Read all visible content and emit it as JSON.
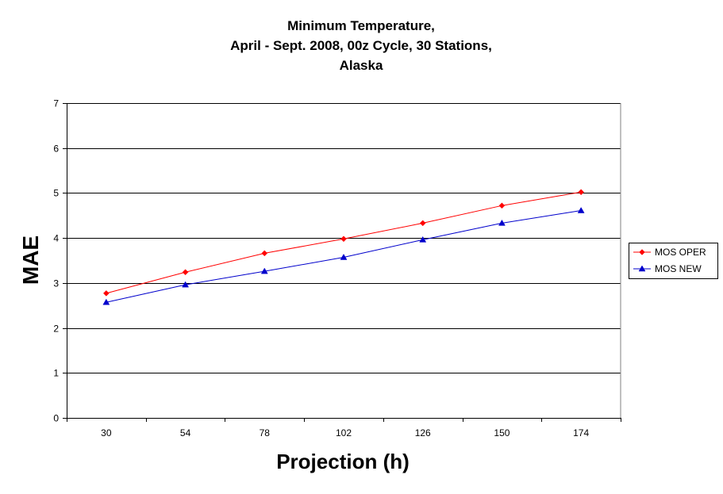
{
  "chart_data": {
    "type": "line",
    "title_lines": [
      "Minimum Temperature,",
      "April - Sept. 2008, 00z Cycle, 30 Stations,",
      "Alaska"
    ],
    "xlabel": "Projection (h)",
    "ylabel": "MAE",
    "categories": [
      "30",
      "54",
      "78",
      "102",
      "126",
      "150",
      "174"
    ],
    "ylim": [
      0,
      7
    ],
    "yticks": [
      "0",
      "1",
      "2",
      "3",
      "4",
      "5",
      "6",
      "7"
    ],
    "grid": "horizontal",
    "legend_position": "right",
    "series": [
      {
        "name": "MOS OPER",
        "color": "#ff0000",
        "marker": "diamond",
        "values": [
          2.77,
          3.24,
          3.66,
          3.98,
          4.33,
          4.72,
          5.02
        ]
      },
      {
        "name": "MOS NEW",
        "color": "#0000cc",
        "marker": "triangle",
        "values": [
          2.57,
          2.96,
          3.26,
          3.57,
          3.96,
          4.33,
          4.61
        ]
      }
    ]
  }
}
